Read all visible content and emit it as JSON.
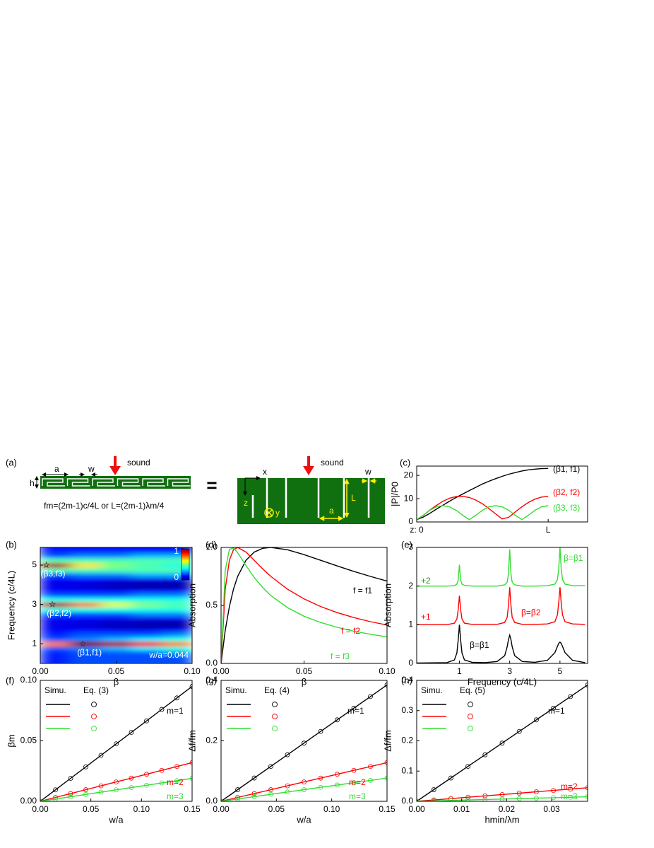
{
  "diagram": {
    "panel_label": "(a)",
    "left": {
      "a": "a",
      "w": "w",
      "h": "h",
      "sound": "sound",
      "formula": "fm=(2m-1)c/4L  or  L=(2m-1)λm/4"
    },
    "equals": "=",
    "right": {
      "sound": "sound",
      "x": "x",
      "z": "z",
      "y": "y",
      "a": "a",
      "L": "L",
      "w": "w"
    }
  },
  "chart_data": [
    {
      "type": "line",
      "panel_label": "(c)",
      "y_label": "|P|/P0",
      "x": [
        0,
        0.05,
        0.1,
        0.15,
        0.2,
        0.25,
        0.3,
        0.35,
        0.4,
        0.45,
        0.5,
        0.55,
        0.6,
        0.65,
        0.7,
        0.75,
        0.8,
        0.85,
        0.9,
        0.95,
        1
      ],
      "xlim": [
        0,
        1.3
      ],
      "xticks": [
        {
          "value": 0,
          "label": "z: 0"
        },
        {
          "value": 1,
          "label": "L"
        }
      ],
      "ylim": [
        0,
        24
      ],
      "yticks": [
        0,
        10,
        20
      ],
      "series": [
        {
          "name": "(β1, f1)",
          "color": "#000000",
          "values": [
            1.0,
            2.1,
            3.7,
            5.5,
            7.2,
            8.9,
            10.5,
            12.0,
            13.5,
            14.9,
            16.3,
            17.5,
            18.6,
            19.6,
            20.5,
            21.2,
            21.9,
            22.4,
            22.7,
            22.9,
            23.0
          ]
        },
        {
          "name": "(β2, f2)",
          "color": "#ff0000",
          "values": [
            1.0,
            2.8,
            5.1,
            7.1,
            8.9,
            10.2,
            10.9,
            11.0,
            10.5,
            9.4,
            7.8,
            5.7,
            3.5,
            1.3,
            2.0,
            4.3,
            6.5,
            8.4,
            9.8,
            10.7,
            11.0
          ]
        },
        {
          "name": "(β3, f3)",
          "color": "#33dd33",
          "values": [
            1.0,
            2.9,
            5.0,
            6.5,
            7.0,
            6.5,
            5.0,
            2.9,
            1.0,
            2.9,
            5.0,
            6.5,
            7.0,
            6.5,
            5.0,
            2.9,
            1.0,
            2.9,
            5.0,
            6.5,
            7.0
          ]
        }
      ]
    },
    {
      "type": "heatmap",
      "panel_label": "(b)",
      "x_label": "β",
      "y_label": "Frequency (c/4L)",
      "x": [
        0.01,
        0.03,
        0.05,
        0.07,
        0.09
      ],
      "y": [
        0,
        0.25,
        0.5,
        0.75,
        1,
        1.25,
        1.5,
        1.75,
        2,
        2.25,
        2.5,
        2.75,
        3,
        3.25,
        3.5,
        3.75,
        4,
        4.25,
        4.5,
        4.75,
        5,
        5.25,
        5.5,
        5.75,
        6
      ],
      "z": [
        [
          0.15,
          0.2,
          0.2,
          0.2,
          0.2
        ],
        [
          0.15,
          0.2,
          0.2,
          0.2,
          0.2
        ],
        [
          0.15,
          0.2,
          0.2,
          0.2,
          0.25
        ],
        [
          0.2,
          0.25,
          0.3,
          0.35,
          0.4
        ],
        [
          0.75,
          1.0,
          0.95,
          0.85,
          0.75
        ],
        [
          0.2,
          0.25,
          0.3,
          0.35,
          0.4
        ],
        [
          0.15,
          0.2,
          0.2,
          0.2,
          0.25
        ],
        [
          0.12,
          0.12,
          0.1,
          0.1,
          0.1
        ],
        [
          0.1,
          0.08,
          0.05,
          0.03,
          0.02
        ],
        [
          0.12,
          0.12,
          0.1,
          0.1,
          0.1
        ],
        [
          0.2,
          0.2,
          0.2,
          0.25,
          0.25
        ],
        [
          0.4,
          0.4,
          0.4,
          0.4,
          0.4
        ],
        [
          0.95,
          0.75,
          0.6,
          0.5,
          0.45
        ],
        [
          0.4,
          0.4,
          0.4,
          0.4,
          0.4
        ],
        [
          0.2,
          0.2,
          0.2,
          0.25,
          0.25
        ],
        [
          0.12,
          0.12,
          0.1,
          0.1,
          0.1
        ],
        [
          0.1,
          0.08,
          0.05,
          0.03,
          0.02
        ],
        [
          0.12,
          0.12,
          0.1,
          0.1,
          0.1
        ],
        [
          0.2,
          0.25,
          0.25,
          0.3,
          0.3
        ],
        [
          0.45,
          0.45,
          0.45,
          0.45,
          0.45
        ],
        [
          0.95,
          0.65,
          0.5,
          0.45,
          0.4
        ],
        [
          0.45,
          0.45,
          0.45,
          0.45,
          0.45
        ],
        [
          0.2,
          0.25,
          0.25,
          0.3,
          0.3
        ],
        [
          0.15,
          0.15,
          0.15,
          0.15,
          0.15
        ],
        [
          0.12,
          0.12,
          0.12,
          0.12,
          0.12
        ]
      ],
      "xlim": [
        0,
        0.1
      ],
      "xticks": [
        {
          "value": 0,
          "label": "0.00"
        },
        {
          "value": 0.05,
          "label": "0.05"
        },
        {
          "value": 0.1,
          "label": "0.10"
        }
      ],
      "ylim": [
        0,
        5.9
      ],
      "yticks": [
        1,
        3,
        5
      ],
      "colormap": "jet",
      "clim": [
        0,
        1
      ],
      "colorbar_ticks": [
        0,
        1
      ],
      "points": [
        {
          "x": 0.004,
          "y": 5,
          "label": "(β3,f3)"
        },
        {
          "x": 0.008,
          "y": 3,
          "label": "(β2,f2)"
        },
        {
          "x": 0.028,
          "y": 1,
          "label": "(β1,f1)"
        }
      ],
      "annotation": "w/a=0.044"
    },
    {
      "type": "line",
      "panel_label": "(d)",
      "x_label": "β",
      "y_label": "Absorption",
      "x": [
        0,
        0.0025,
        0.005,
        0.0075,
        0.01,
        0.015,
        0.02,
        0.025,
        0.03,
        0.04,
        0.05,
        0.06,
        0.07,
        0.08,
        0.09,
        0.1
      ],
      "xlim": [
        0,
        0.1
      ],
      "xticks": [
        {
          "value": 0,
          "label": "0.00"
        },
        {
          "value": 0.05,
          "label": "0.05"
        },
        {
          "value": 0.1,
          "label": "0.10"
        }
      ],
      "ylim": [
        0,
        1
      ],
      "yticks": [
        {
          "value": 0,
          "label": "0.0"
        },
        {
          "value": 0.5,
          "label": "0.5"
        },
        {
          "value": 1,
          "label": "1.0"
        }
      ],
      "series": [
        {
          "name": "f = f1",
          "color": "#000000",
          "values": [
            0,
            0.284,
            0.49,
            0.64,
            0.75,
            0.889,
            0.96,
            0.992,
            1,
            0.98,
            0.938,
            0.889,
            0.84,
            0.793,
            0.75,
            0.71
          ]
        },
        {
          "name": "f = f2",
          "color": "#ff0000",
          "values": [
            0,
            0.64,
            0.889,
            0.98,
            1,
            0.96,
            0.889,
            0.816,
            0.75,
            0.64,
            0.556,
            0.49,
            0.438,
            0.395,
            0.36,
            0.331
          ]
        },
        {
          "name": "f = f3",
          "color": "#33dd33",
          "values": [
            0,
            0.802,
            0.983,
            0.995,
            0.955,
            0.844,
            0.74,
            0.655,
            0.585,
            0.481,
            0.407,
            0.353,
            0.311,
            0.278,
            0.251,
            0.229
          ]
        }
      ]
    },
    {
      "type": "line",
      "panel_label": "(e)",
      "x_label": "Frequency (c/4L)",
      "y_label": "Absorption",
      "x": [
        -0.7,
        0.5,
        0.8,
        0.9,
        0.95,
        1,
        1.05,
        1.1,
        1.2,
        1.5,
        2,
        2.5,
        2.8,
        2.9,
        2.95,
        3,
        3.05,
        3.1,
        3.2,
        3.5,
        4,
        4.5,
        4.8,
        4.9,
        4.95,
        5,
        5.05,
        5.1,
        5.2,
        5.5,
        6
      ],
      "xlim": [
        -0.7,
        6.1
      ],
      "xticks": [
        1,
        3,
        5
      ],
      "ylim": [
        0,
        3
      ],
      "yticks": [
        0,
        1,
        2,
        3
      ],
      "series": [
        {
          "name": "β=β1",
          "color": "#000000",
          "values": [
            0.01,
            0.02,
            0.09,
            0.27,
            0.59,
            1.0,
            0.59,
            0.27,
            0.09,
            0.03,
            0.02,
            0.05,
            0.2,
            0.43,
            0.61,
            0.73,
            0.61,
            0.43,
            0.2,
            0.05,
            0.03,
            0.08,
            0.28,
            0.44,
            0.52,
            0.55,
            0.52,
            0.44,
            0.28,
            0.08,
            0.02
          ]
        },
        {
          "name": "β=β2",
          "color": "#ff0000",
          "values": [
            1.0,
            1.0,
            1.04,
            1.15,
            1.38,
            1.75,
            1.38,
            1.15,
            1.04,
            1.01,
            1.01,
            1.01,
            1.06,
            1.19,
            1.49,
            1.97,
            1.49,
            1.19,
            1.06,
            1.01,
            1.01,
            1.02,
            1.08,
            1.26,
            1.57,
            1.97,
            1.57,
            1.26,
            1.08,
            1.02,
            1.01
          ]
        },
        {
          "name": "β=β1",
          "color": "#33dd33",
          "values": [
            2.0,
            2.0,
            2.01,
            2.05,
            2.15,
            2.55,
            2.15,
            2.05,
            2.02,
            2.0,
            2.0,
            2.0,
            2.03,
            2.1,
            2.31,
            2.95,
            2.31,
            2.1,
            2.03,
            2.0,
            2.0,
            2.01,
            2.05,
            2.17,
            2.45,
            3.0,
            2.45,
            2.17,
            2.05,
            2.01,
            2.01
          ]
        }
      ],
      "annotations": [
        {
          "text": "+2",
          "color": "#1e9a1e"
        },
        {
          "text": "+1",
          "color": "#ff0000"
        }
      ]
    },
    {
      "type": "line",
      "panel_label": "(f)",
      "x_label": "w/a",
      "y_label": "βm",
      "legend_titles": [
        "Simu.",
        "Eq. (3)"
      ],
      "x": [
        0,
        0.015,
        0.03,
        0.045,
        0.06,
        0.075,
        0.09,
        0.105,
        0.12,
        0.135,
        0.15
      ],
      "xlim": [
        0,
        0.15
      ],
      "xticks": [
        {
          "value": 0,
          "label": "0.00"
        },
        {
          "value": 0.05,
          "label": "0.05"
        },
        {
          "value": 0.1,
          "label": "0.10"
        },
        {
          "value": 0.15,
          "label": "0.15"
        }
      ],
      "ylim": [
        0,
        0.1
      ],
      "yticks": [
        {
          "value": 0,
          "label": "0.00"
        },
        {
          "value": 0.05,
          "label": "0.05"
        },
        {
          "value": 0.1,
          "label": "0.10"
        }
      ],
      "series": [
        {
          "name": "m=1",
          "color": "#000000",
          "values": [
            0,
            0.0095,
            0.019,
            0.0285,
            0.038,
            0.0475,
            0.057,
            0.0665,
            0.076,
            0.0855,
            0.095
          ],
          "eq_values": [
            0,
            0.0095,
            0.019,
            0.0285,
            0.038,
            0.0475,
            0.057,
            0.0665,
            0.076,
            0.0855,
            0.095
          ]
        },
        {
          "name": "m=2",
          "color": "#ff0000",
          "values": [
            0,
            0.0032,
            0.0064,
            0.0096,
            0.0128,
            0.016,
            0.0192,
            0.0224,
            0.0256,
            0.0288,
            0.032
          ],
          "eq_values": [
            0,
            0.0032,
            0.0064,
            0.0096,
            0.0128,
            0.016,
            0.0192,
            0.0224,
            0.0256,
            0.0288,
            0.032
          ]
        },
        {
          "name": "m=3",
          "color": "#33dd33",
          "values": [
            0,
            0.0019,
            0.0038,
            0.0057,
            0.0076,
            0.0095,
            0.0114,
            0.0133,
            0.0152,
            0.0171,
            0.019
          ],
          "eq_values": [
            0,
            0.0019,
            0.0038,
            0.0057,
            0.0076,
            0.0095,
            0.0114,
            0.0133,
            0.0152,
            0.0171,
            0.019
          ]
        }
      ]
    },
    {
      "type": "line",
      "panel_label": "(g)",
      "x_label": "w/a",
      "y_label": "Δf/fm",
      "legend_titles": [
        "Simu.",
        "Eq. (4)"
      ],
      "x": [
        0,
        0.015,
        0.03,
        0.045,
        0.06,
        0.075,
        0.09,
        0.105,
        0.12,
        0.135,
        0.15
      ],
      "xlim": [
        0,
        0.15
      ],
      "xticks": [
        {
          "value": 0,
          "label": "0.00"
        },
        {
          "value": 0.05,
          "label": "0.05"
        },
        {
          "value": 0.1,
          "label": "0.10"
        },
        {
          "value": 0.15,
          "label": "0.15"
        }
      ],
      "ylim": [
        0,
        0.4
      ],
      "yticks": [
        {
          "value": 0,
          "label": "0.0"
        },
        {
          "value": 0.2,
          "label": "0.2"
        },
        {
          "value": 0.4,
          "label": "0.4"
        }
      ],
      "series": [
        {
          "name": "m=1",
          "color": "#000000",
          "values": [
            0,
            0.0385,
            0.077,
            0.1155,
            0.154,
            0.1925,
            0.231,
            0.2695,
            0.308,
            0.3465,
            0.385
          ],
          "eq_values": [
            0,
            0.0385,
            0.077,
            0.1155,
            0.154,
            0.1925,
            0.231,
            0.2695,
            0.308,
            0.3465,
            0.385
          ]
        },
        {
          "name": "m=2",
          "color": "#ff0000",
          "values": [
            0,
            0.0128,
            0.0256,
            0.0384,
            0.0512,
            0.064,
            0.0768,
            0.0896,
            0.1024,
            0.1152,
            0.128
          ],
          "eq_values": [
            0,
            0.0128,
            0.0256,
            0.0384,
            0.0512,
            0.064,
            0.0768,
            0.0896,
            0.1024,
            0.1152,
            0.128
          ]
        },
        {
          "name": "m=3",
          "color": "#33dd33",
          "values": [
            0,
            0.0077,
            0.0154,
            0.0231,
            0.0308,
            0.0385,
            0.0462,
            0.0539,
            0.0616,
            0.0693,
            0.077
          ],
          "eq_values": [
            0,
            0.0077,
            0.0154,
            0.0231,
            0.0308,
            0.0385,
            0.0462,
            0.0539,
            0.0616,
            0.0693,
            0.077
          ]
        }
      ]
    },
    {
      "type": "line",
      "panel_label": "(h)",
      "x_label": "hmin/λm",
      "y_label": "Δf/fm",
      "legend_titles": [
        "Simu.",
        "Eq. (5)"
      ],
      "x": [
        0,
        0.0038,
        0.0076,
        0.0114,
        0.0152,
        0.019,
        0.0228,
        0.0266,
        0.0304,
        0.0342,
        0.038
      ],
      "xlim": [
        0,
        0.038
      ],
      "xticks": [
        {
          "value": 0,
          "label": "0.00"
        },
        {
          "value": 0.01,
          "label": "0.01"
        },
        {
          "value": 0.02,
          "label": "0.02"
        },
        {
          "value": 0.03,
          "label": "0.03"
        }
      ],
      "ylim": [
        0,
        0.4
      ],
      "yticks": [
        {
          "value": 0,
          "label": "0.0"
        },
        {
          "value": 0.1,
          "label": "0.1"
        },
        {
          "value": 0.2,
          "label": "0.2"
        },
        {
          "value": 0.3,
          "label": "0.3"
        },
        {
          "value": 0.4,
          "label": "0.4"
        }
      ],
      "series": [
        {
          "name": "m=1",
          "color": "#000000",
          "values": [
            0,
            0.0385,
            0.077,
            0.1155,
            0.154,
            0.1925,
            0.231,
            0.2695,
            0.308,
            0.3465,
            0.385
          ],
          "eq_values": [
            0,
            0.0385,
            0.077,
            0.1155,
            0.154,
            0.1925,
            0.231,
            0.2695,
            0.308,
            0.3465,
            0.385
          ]
        },
        {
          "name": "m=2",
          "color": "#ff0000",
          "values": [
            0,
            0.0045,
            0.009,
            0.0135,
            0.018,
            0.0225,
            0.027,
            0.0315,
            0.036,
            0.0405,
            0.045
          ],
          "eq_values": [
            0,
            0.0045,
            0.009,
            0.0135,
            0.018,
            0.0225,
            0.027,
            0.0315,
            0.036,
            0.0405,
            0.045
          ]
        },
        {
          "name": "m=3",
          "color": "#33dd33",
          "values": [
            0,
            0.0015,
            0.003,
            0.0045,
            0.006,
            0.0075,
            0.009,
            0.0105,
            0.012,
            0.0135,
            0.015
          ],
          "eq_values": [
            0,
            0.0015,
            0.003,
            0.0045,
            0.006,
            0.0075,
            0.009,
            0.0105,
            0.012,
            0.0135,
            0.015
          ]
        }
      ]
    }
  ]
}
